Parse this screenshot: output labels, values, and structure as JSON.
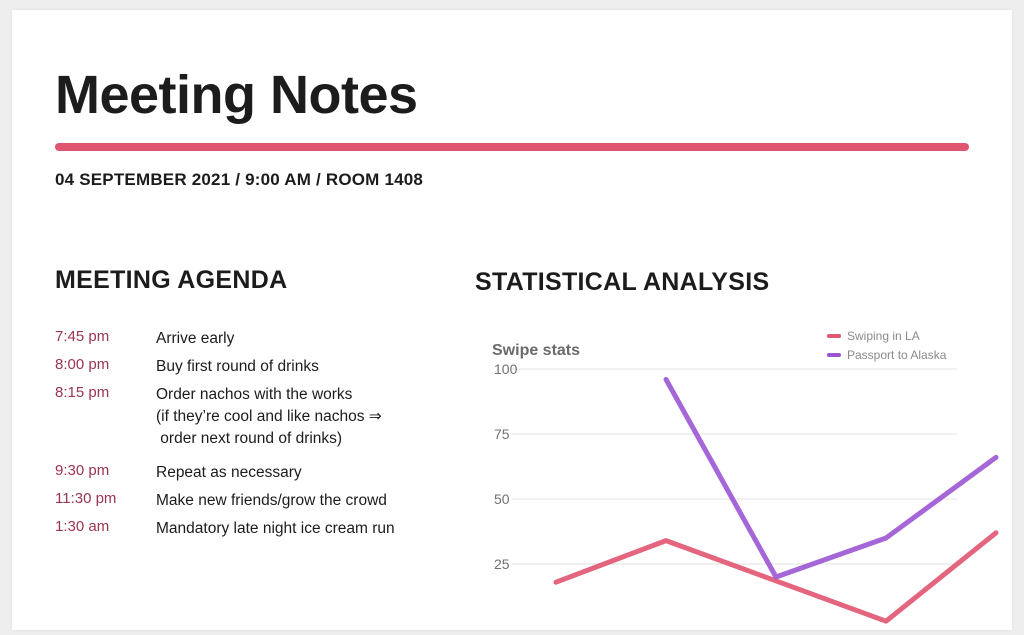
{
  "document": {
    "title": "Meeting Notes",
    "meta": "04 SEPTEMBER 2021 / 9:00 AM / ROOM 1408",
    "accent_color": "#e05570"
  },
  "agenda": {
    "heading": "MEETING AGENDA",
    "items": [
      {
        "time": "7:45 pm",
        "text": "Arrive early"
      },
      {
        "time": "8:00 pm",
        "text": "Buy first round of drinks"
      },
      {
        "time": "8:15 pm",
        "text": "Order nachos with the works\n(if they’re cool and like nachos ⇒\n order next round of drinks)"
      },
      {
        "time": "9:30 pm",
        "text": "Repeat as necessary"
      },
      {
        "time": "11:30 pm",
        "text": "Make new friends/grow the crowd"
      },
      {
        "time": "1:30 am",
        "text": "Mandatory late night ice cream run"
      }
    ]
  },
  "stats": {
    "heading": "STATISTICAL ANALYSIS"
  },
  "chart_data": {
    "type": "line",
    "title": "Swipe stats",
    "xlabel": "",
    "ylabel": "",
    "x": [
      1,
      2,
      3,
      4,
      5
    ],
    "y_ticks": [
      "100",
      "75",
      "50",
      "25"
    ],
    "ylim": [
      0,
      105
    ],
    "grid": true,
    "legend_position": "top-right",
    "series": [
      {
        "name": "Swiping in LA",
        "color": "#e05570",
        "values": [
          18,
          34,
          null,
          3,
          37
        ]
      },
      {
        "name": "Passport to Alaska",
        "color": "#9b55d4",
        "values": [
          null,
          96,
          20,
          35,
          66
        ]
      }
    ]
  }
}
